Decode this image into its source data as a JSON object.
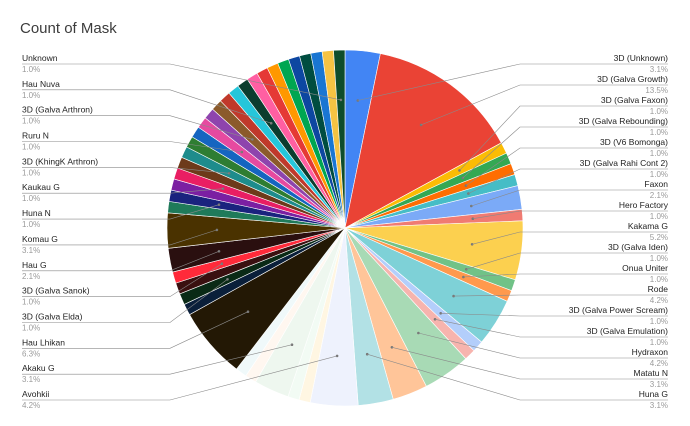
{
  "chart_data": {
    "type": "pie",
    "title": "Count of Mask",
    "slices": [
      {
        "label": "3D (Unknown)",
        "value": 3.1,
        "pct_label": "3.1%",
        "color": "#4285f4",
        "labeled": true
      },
      {
        "label": "3D (Galva Growth)",
        "value": 13.5,
        "pct_label": "13.5%",
        "color": "#ea4335",
        "labeled": true
      },
      {
        "label": "3D (Galva Faxon)",
        "value": 1.0,
        "pct_label": "1.0%",
        "color": "#fbbc04",
        "labeled": true
      },
      {
        "label": "3D (Galva Rebounding)",
        "value": 1.0,
        "pct_label": "1.0%",
        "color": "#34a853",
        "labeled": true
      },
      {
        "label": "3D (V6 Bomonga)",
        "value": 1.0,
        "pct_label": "1.0%",
        "color": "#ff6d01",
        "labeled": true
      },
      {
        "label": "3D (Galva Rahi Cont 2)",
        "value": 1.0,
        "pct_label": "1.0%",
        "color": "#46bdc6",
        "labeled": true
      },
      {
        "label": "Faxon",
        "value": 2.1,
        "pct_label": "2.1%",
        "color": "#7baaf7",
        "labeled": true
      },
      {
        "label": "Hero Factory",
        "value": 1.0,
        "pct_label": "1.0%",
        "color": "#f07b72",
        "labeled": true
      },
      {
        "label": "Kakama G",
        "value": 5.2,
        "pct_label": "5.2%",
        "color": "#fcd04f",
        "labeled": true
      },
      {
        "label": "3D (Galva Iden)",
        "value": 1.0,
        "pct_label": "1.0%",
        "color": "#71c287",
        "labeled": true
      },
      {
        "label": "Onua Uniter",
        "value": 1.0,
        "pct_label": "1.0%",
        "color": "#ff994d",
        "labeled": true
      },
      {
        "label": "Rode",
        "value": 4.2,
        "pct_label": "4.2%",
        "color": "#7ed1d7",
        "labeled": true
      },
      {
        "label": "3D (Galva Power Scream)",
        "value": 1.0,
        "pct_label": "1.0%",
        "color": "#b3cefb",
        "labeled": true
      },
      {
        "label": "3D (Galva Emulation)",
        "value": 1.0,
        "pct_label": "1.0%",
        "color": "#f7b4ae",
        "labeled": true
      },
      {
        "label": "Hydraxon",
        "value": 4.2,
        "pct_label": "4.2%",
        "color": "#a8dab5",
        "labeled": true
      },
      {
        "label": "Matatu N",
        "value": 3.1,
        "pct_label": "3.1%",
        "color": "#ffc599",
        "labeled": true
      },
      {
        "label": "Huna G",
        "value": 3.1,
        "pct_label": "3.1%",
        "color": "#b2e1e5",
        "labeled": true
      },
      {
        "label": "Avohkii",
        "value": 4.2,
        "pct_label": "4.2%",
        "color": "#eef2fd",
        "labeled": true
      },
      {
        "label": "",
        "value": 1.0,
        "pct_label": "",
        "color": "#fff6e2",
        "labeled": false
      },
      {
        "label": "",
        "value": 1.0,
        "pct_label": "",
        "color": "#f2fbf4",
        "labeled": false
      },
      {
        "label": "Akaku G",
        "value": 3.1,
        "pct_label": "3.1%",
        "color": "#eef7ef",
        "labeled": true
      },
      {
        "label": "",
        "value": 1.0,
        "pct_label": "",
        "color": "#fff7f0",
        "labeled": false
      },
      {
        "label": "",
        "value": 1.0,
        "pct_label": "",
        "color": "#f0f9fa",
        "labeled": false
      },
      {
        "label": "Hau Lhikan",
        "value": 6.3,
        "pct_label": "6.3%",
        "color": "#231805",
        "labeled": true
      },
      {
        "label": "",
        "value": 1.0,
        "pct_label": "",
        "color": "#0a1f3a",
        "labeled": false
      },
      {
        "label": "3D (Galva Elda)",
        "value": 1.0,
        "pct_label": "1.0%",
        "color": "#0a2a16",
        "labeled": true
      },
      {
        "label": "",
        "value": 1.0,
        "pct_label": "",
        "color": "#3a1010",
        "labeled": false
      },
      {
        "label": "3D (Galva Sanok)",
        "value": 1.0,
        "pct_label": "1.0%",
        "color": "#ff2a3a",
        "labeled": true
      },
      {
        "label": "Hau G",
        "value": 2.1,
        "pct_label": "2.1%",
        "color": "#2a0f0f",
        "labeled": true
      },
      {
        "label": "Komau G",
        "value": 3.1,
        "pct_label": "3.1%",
        "color": "#4a3200",
        "labeled": true
      },
      {
        "label": "",
        "value": 1.0,
        "pct_label": "",
        "color": "#1f7a5a",
        "labeled": false
      },
      {
        "label": "Huna N",
        "value": 1.0,
        "pct_label": "1.0%",
        "color": "#1a237e",
        "labeled": true
      },
      {
        "label": "",
        "value": 1.0,
        "pct_label": "",
        "color": "#7b1fa2",
        "labeled": false
      },
      {
        "label": "Kaukau G",
        "value": 1.0,
        "pct_label": "1.0%",
        "color": "#e91e63",
        "labeled": true
      },
      {
        "label": "",
        "value": 1.0,
        "pct_label": "",
        "color": "#6d3a1a",
        "labeled": false
      },
      {
        "label": "3D (KhingK Arthron)",
        "value": 1.0,
        "pct_label": "1.0%",
        "color": "#1e8c8c",
        "labeled": true
      },
      {
        "label": "",
        "value": 1.0,
        "pct_label": "",
        "color": "#2e7d32",
        "labeled": false
      },
      {
        "label": "",
        "value": 1.0,
        "pct_label": "",
        "color": "#1565c0",
        "labeled": false
      },
      {
        "label": "Ruru N",
        "value": 1.0,
        "pct_label": "1.0%",
        "color": "#e64aa0",
        "labeled": true
      },
      {
        "label": "",
        "value": 1.0,
        "pct_label": "",
        "color": "#8e44ad",
        "labeled": false
      },
      {
        "label": "3D (Galva Arthron)",
        "value": 1.0,
        "pct_label": "1.0%",
        "color": "#8b5a2b",
        "labeled": true
      },
      {
        "label": "",
        "value": 1.0,
        "pct_label": "",
        "color": "#c0392b",
        "labeled": false
      },
      {
        "label": "",
        "value": 1.0,
        "pct_label": "",
        "color": "#26c6da",
        "labeled": false
      },
      {
        "label": "Hau Nuva",
        "value": 1.0,
        "pct_label": "1.0%",
        "color": "#0b3d2e",
        "labeled": true
      },
      {
        "label": "",
        "value": 1.0,
        "pct_label": "",
        "color": "#ff5fa2",
        "labeled": false
      },
      {
        "label": "",
        "value": 1.0,
        "pct_label": "",
        "color": "#e53935",
        "labeled": false
      },
      {
        "label": "",
        "value": 1.0,
        "pct_label": "",
        "color": "#ff9800",
        "labeled": false
      },
      {
        "label": "",
        "value": 1.0,
        "pct_label": "",
        "color": "#00a651",
        "labeled": false
      },
      {
        "label": "",
        "value": 1.0,
        "pct_label": "",
        "color": "#0d47a1",
        "labeled": false
      },
      {
        "label": "",
        "value": 1.0,
        "pct_label": "",
        "color": "#004d40",
        "labeled": false
      },
      {
        "label": "",
        "value": 1.0,
        "pct_label": "",
        "color": "#1976d2",
        "labeled": false
      },
      {
        "label": "",
        "value": 1.0,
        "pct_label": "",
        "color": "#f6c343",
        "labeled": false
      },
      {
        "label": "Unknown",
        "value": 1.0,
        "pct_label": "1.0%",
        "color": "#0e4d2c",
        "labeled": true
      }
    ]
  }
}
